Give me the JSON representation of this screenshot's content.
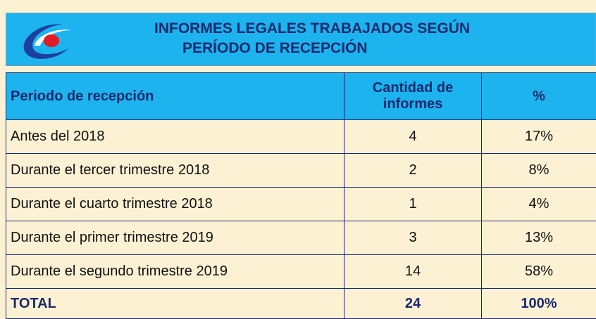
{
  "header": {
    "title": [
      "INFORMES LEGALES TRABAJADOS SEGÚN",
      "PERÍODO DE RECEPCIÓN"
    ]
  },
  "table": {
    "columns": [
      "Periodo de recepción",
      "Cantidad de informes",
      "%"
    ],
    "rows": [
      [
        "Antes del 2018",
        "4",
        "17%"
      ],
      [
        "Durante el tercer trimestre 2018",
        "2",
        "8%"
      ],
      [
        "Durante el cuarto trimestre 2018",
        "1",
        "4%"
      ],
      [
        "Durante el primer trimestre 2019",
        "3",
        "13%"
      ],
      [
        "Durante el segundo trimestre 2019",
        "14",
        "58%"
      ]
    ],
    "total": [
      "TOTAL",
      "24",
      "100%"
    ]
  }
}
